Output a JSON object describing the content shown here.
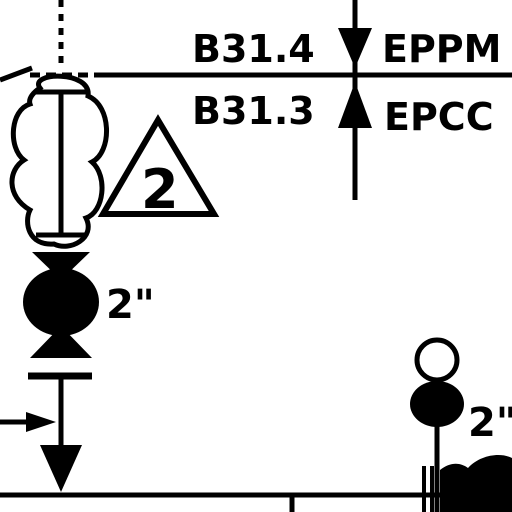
{
  "spec_break": {
    "upper_code": "B31.4",
    "upper_class": "EPPM",
    "lower_code": "B31.3",
    "lower_class": "EPCC"
  },
  "revision_triangle": {
    "number": "2"
  },
  "valve_size": "2\"",
  "instrument_valve_size": "2\"",
  "colors": {
    "line": "#000000",
    "background": "#ffffff"
  }
}
